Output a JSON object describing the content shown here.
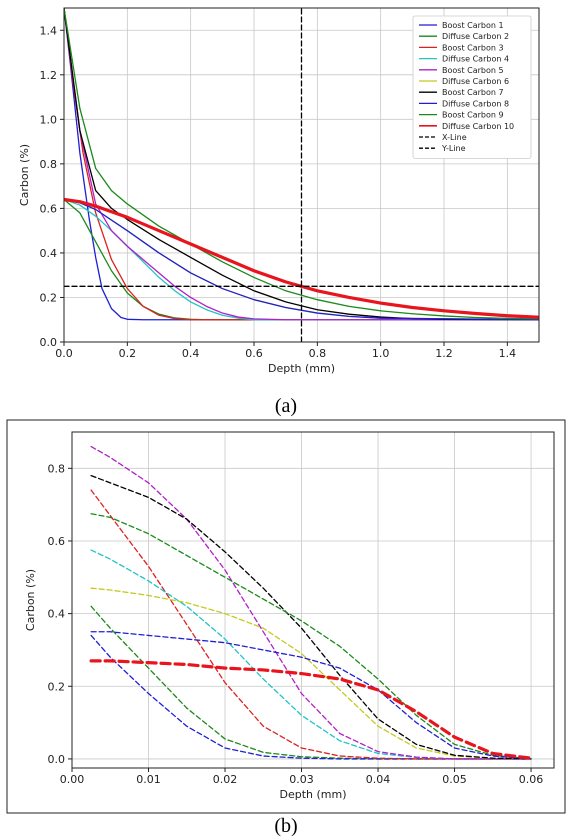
{
  "chart_data": [
    {
      "type": "line",
      "caption": "(a)",
      "xlabel": "Depth (mm)",
      "ylabel": "Carbon (%)",
      "xlim": [
        0,
        1.5
      ],
      "ylim": [
        0,
        1.5
      ],
      "xticks": [
        0.0,
        0.2,
        0.4,
        0.6,
        0.8,
        1.0,
        1.2,
        1.4
      ],
      "xtick_labels": [
        "0.0",
        "0.2",
        "0.4",
        "0.6",
        "0.8",
        "1.0",
        "1.2",
        "1.4"
      ],
      "yticks": [
        0.0,
        0.2,
        0.4,
        0.6,
        0.8,
        1.0,
        1.2,
        1.4
      ],
      "ytick_labels": [
        "0.0",
        "0.2",
        "0.4",
        "0.6",
        "0.8",
        "1.0",
        "1.2",
        "1.4"
      ],
      "grid": true,
      "legend_position": "top-right",
      "series": [
        {
          "name": "Boost Carbon 1",
          "color": "#1f1fd6",
          "style": "solid",
          "width": 1.3,
          "x": [
            0,
            0.02,
            0.05,
            0.08,
            0.1,
            0.12,
            0.15,
            0.18,
            0.2,
            0.25,
            0.3,
            1.5
          ],
          "y": [
            1.5,
            1.25,
            0.85,
            0.55,
            0.38,
            0.24,
            0.15,
            0.11,
            0.102,
            0.1,
            0.1,
            0.1
          ]
        },
        {
          "name": "Diffuse Carbon 2",
          "color": "#1a8a1a",
          "style": "solid",
          "width": 1.3,
          "x": [
            0,
            0.05,
            0.1,
            0.15,
            0.2,
            0.25,
            0.3,
            0.35,
            0.4,
            0.45,
            1.5
          ],
          "y": [
            0.64,
            0.58,
            0.45,
            0.32,
            0.22,
            0.16,
            0.125,
            0.108,
            0.102,
            0.1,
            0.1
          ]
        },
        {
          "name": "Boost Carbon 3",
          "color": "#e02020",
          "style": "solid",
          "width": 1.3,
          "x": [
            0,
            0.03,
            0.06,
            0.1,
            0.15,
            0.2,
            0.25,
            0.3,
            0.35,
            0.4,
            1.5
          ],
          "y": [
            1.5,
            1.15,
            0.85,
            0.58,
            0.37,
            0.24,
            0.16,
            0.12,
            0.105,
            0.1,
            0.1
          ]
        },
        {
          "name": "Diffuse Carbon 4",
          "color": "#20c4c4",
          "style": "solid",
          "width": 1.3,
          "x": [
            0,
            0.05,
            0.1,
            0.15,
            0.2,
            0.25,
            0.3,
            0.35,
            0.4,
            0.45,
            0.5,
            0.55,
            0.6,
            1.5
          ],
          "y": [
            0.64,
            0.615,
            0.565,
            0.5,
            0.43,
            0.36,
            0.29,
            0.23,
            0.18,
            0.145,
            0.12,
            0.107,
            0.1,
            0.1
          ]
        },
        {
          "name": "Boost Carbon 5",
          "color": "#b020c8",
          "style": "solid",
          "width": 1.3,
          "x": [
            0,
            0.05,
            0.1,
            0.15,
            0.2,
            0.25,
            0.3,
            0.35,
            0.4,
            0.45,
            0.5,
            0.55,
            0.6,
            0.7,
            1.5
          ],
          "y": [
            1.5,
            0.95,
            0.62,
            0.5,
            0.43,
            0.37,
            0.31,
            0.25,
            0.2,
            0.16,
            0.13,
            0.112,
            0.104,
            0.1,
            0.1
          ]
        },
        {
          "name": "Diffuse Carbon 6",
          "color": "#c8c820",
          "style": "solid",
          "width": 1.3,
          "x": [
            0,
            0.05,
            0.1,
            0.2,
            0.3,
            0.4,
            0.5,
            0.6,
            0.7,
            0.8,
            0.9,
            1.0,
            1.5
          ],
          "y": [
            0.64,
            0.625,
            0.595,
            0.5,
            0.4,
            0.31,
            0.24,
            0.19,
            0.155,
            0.13,
            0.115,
            0.107,
            0.1
          ]
        },
        {
          "name": "Boost Carbon 7",
          "color": "#000000",
          "style": "solid",
          "width": 1.3,
          "x": [
            0,
            0.05,
            0.1,
            0.15,
            0.2,
            0.3,
            0.4,
            0.5,
            0.6,
            0.7,
            0.8,
            0.9,
            1.0,
            1.1,
            1.2,
            1.5
          ],
          "y": [
            1.5,
            0.95,
            0.68,
            0.6,
            0.55,
            0.46,
            0.38,
            0.3,
            0.23,
            0.18,
            0.145,
            0.125,
            0.112,
            0.105,
            0.102,
            0.1
          ]
        },
        {
          "name": "Diffuse Carbon 8",
          "color": "#1f1fd6",
          "style": "solid",
          "width": 1.3,
          "x": [
            0,
            0.05,
            0.1,
            0.2,
            0.3,
            0.4,
            0.5,
            0.6,
            0.7,
            0.8,
            0.9,
            1.0,
            1.5
          ],
          "y": [
            0.64,
            0.625,
            0.595,
            0.5,
            0.4,
            0.31,
            0.24,
            0.19,
            0.155,
            0.13,
            0.115,
            0.107,
            0.1
          ]
        },
        {
          "name": "Boost Carbon 9",
          "color": "#1a8a1a",
          "style": "solid",
          "width": 1.3,
          "x": [
            0,
            0.05,
            0.1,
            0.15,
            0.2,
            0.3,
            0.4,
            0.5,
            0.6,
            0.7,
            0.8,
            0.9,
            1.0,
            1.1,
            1.2,
            1.3,
            1.4,
            1.5
          ],
          "y": [
            1.5,
            1.05,
            0.78,
            0.68,
            0.62,
            0.52,
            0.44,
            0.36,
            0.29,
            0.23,
            0.19,
            0.16,
            0.14,
            0.127,
            0.117,
            0.11,
            0.106,
            0.104
          ]
        },
        {
          "name": "Diffuse Carbon 10",
          "color": "#e8141e",
          "style": "solid",
          "width": 3.2,
          "x": [
            0,
            0.05,
            0.1,
            0.2,
            0.3,
            0.4,
            0.5,
            0.6,
            0.7,
            0.8,
            0.9,
            1.0,
            1.1,
            1.2,
            1.3,
            1.4,
            1.5
          ],
          "y": [
            0.64,
            0.63,
            0.61,
            0.56,
            0.5,
            0.44,
            0.38,
            0.32,
            0.27,
            0.23,
            0.2,
            0.175,
            0.155,
            0.14,
            0.128,
            0.118,
            0.111
          ]
        },
        {
          "name": "X-Line",
          "color": "#000000",
          "style": "dashed",
          "width": 1.3,
          "x": [
            0,
            1.5
          ],
          "y": [
            0.25,
            0.25
          ]
        },
        {
          "name": "Y-Line",
          "color": "#000000",
          "style": "dashed",
          "width": 1.3,
          "x": [
            0.75,
            0.75
          ],
          "y": [
            0,
            1.5
          ]
        }
      ]
    },
    {
      "type": "line",
      "caption": "(b)",
      "xlabel": "Depth (mm)",
      "ylabel": "Carbon (%)",
      "xlim": [
        0,
        0.063
      ],
      "ylim": [
        -0.025,
        0.9
      ],
      "xticks": [
        0.0,
        0.01,
        0.02,
        0.03,
        0.04,
        0.05,
        0.06
      ],
      "xtick_labels": [
        "0.00",
        "0.01",
        "0.02",
        "0.03",
        "0.04",
        "0.05",
        "0.06"
      ],
      "yticks": [
        0.0,
        0.2,
        0.4,
        0.6,
        0.8
      ],
      "ytick_labels": [
        "0.0",
        "0.2",
        "0.4",
        "0.6",
        "0.8"
      ],
      "grid": true,
      "series": [
        {
          "color": "#1a8a1a",
          "style": "dashed",
          "width": 1.3,
          "x": [
            0.0025,
            0.005,
            0.01,
            0.015,
            0.02,
            0.025,
            0.03,
            0.035,
            0.04,
            0.045,
            0.05,
            0.055,
            0.06
          ],
          "y": [
            0.42,
            0.36,
            0.25,
            0.14,
            0.055,
            0.018,
            0.006,
            0.002,
            0,
            0,
            0,
            0,
            0
          ]
        },
        {
          "color": "#1f1fd6",
          "style": "dashed",
          "width": 1.3,
          "x": [
            0.0025,
            0.005,
            0.01,
            0.015,
            0.02,
            0.025,
            0.03,
            0.035,
            0.04,
            0.045,
            0.05,
            0.055,
            0.06
          ],
          "y": [
            0.34,
            0.28,
            0.18,
            0.09,
            0.03,
            0.008,
            0.002,
            0,
            0,
            0,
            0,
            0,
            0
          ]
        },
        {
          "color": "#e02020",
          "style": "dashed",
          "width": 1.3,
          "x": [
            0.0025,
            0.005,
            0.01,
            0.015,
            0.02,
            0.025,
            0.03,
            0.035,
            0.04,
            0.045,
            0.05,
            0.055,
            0.06
          ],
          "y": [
            0.74,
            0.67,
            0.53,
            0.37,
            0.21,
            0.09,
            0.03,
            0.008,
            0.002,
            0,
            0,
            0,
            0
          ]
        },
        {
          "color": "#20c4c4",
          "style": "dashed",
          "width": 1.3,
          "x": [
            0.0025,
            0.005,
            0.01,
            0.015,
            0.02,
            0.025,
            0.03,
            0.035,
            0.04,
            0.045,
            0.05,
            0.055,
            0.06
          ],
          "y": [
            0.575,
            0.55,
            0.49,
            0.42,
            0.33,
            0.22,
            0.12,
            0.05,
            0.015,
            0.004,
            0,
            0,
            0
          ]
        },
        {
          "color": "#b020c8",
          "style": "dashed",
          "width": 1.3,
          "x": [
            0.0025,
            0.005,
            0.01,
            0.015,
            0.02,
            0.025,
            0.03,
            0.035,
            0.04,
            0.045,
            0.05,
            0.055,
            0.06
          ],
          "y": [
            0.86,
            0.83,
            0.76,
            0.66,
            0.52,
            0.35,
            0.18,
            0.07,
            0.02,
            0.005,
            0,
            0,
            0
          ]
        },
        {
          "color": "#c8c820",
          "style": "dashed",
          "width": 1.3,
          "x": [
            0.0025,
            0.005,
            0.01,
            0.015,
            0.02,
            0.025,
            0.03,
            0.035,
            0.04,
            0.045,
            0.05,
            0.055,
            0.06
          ],
          "y": [
            0.47,
            0.465,
            0.45,
            0.43,
            0.4,
            0.36,
            0.29,
            0.19,
            0.09,
            0.03,
            0.008,
            0.002,
            0
          ]
        },
        {
          "color": "#000000",
          "style": "dashed",
          "width": 1.3,
          "x": [
            0.0025,
            0.005,
            0.01,
            0.015,
            0.02,
            0.025,
            0.03,
            0.035,
            0.04,
            0.045,
            0.05,
            0.055,
            0.06
          ],
          "y": [
            0.78,
            0.76,
            0.72,
            0.66,
            0.57,
            0.47,
            0.36,
            0.23,
            0.11,
            0.04,
            0.01,
            0.002,
            0
          ]
        },
        {
          "color": "#1a8a1a",
          "style": "dashed",
          "width": 1.3,
          "x": [
            0.0025,
            0.005,
            0.01,
            0.015,
            0.02,
            0.025,
            0.03,
            0.035,
            0.04,
            0.045,
            0.05,
            0.055,
            0.06
          ],
          "y": [
            0.675,
            0.665,
            0.62,
            0.56,
            0.5,
            0.44,
            0.38,
            0.31,
            0.22,
            0.12,
            0.04,
            0.01,
            0
          ]
        },
        {
          "color": "#1f1fd6",
          "style": "dashed",
          "width": 1.3,
          "x": [
            0.0025,
            0.005,
            0.01,
            0.015,
            0.02,
            0.025,
            0.03,
            0.035,
            0.04,
            0.045,
            0.05,
            0.055,
            0.06
          ],
          "y": [
            0.35,
            0.35,
            0.34,
            0.33,
            0.32,
            0.3,
            0.28,
            0.25,
            0.19,
            0.1,
            0.03,
            0.008,
            0
          ]
        },
        {
          "color": "#e8141e",
          "style": "dashed",
          "width": 3.2,
          "x": [
            0.0025,
            0.005,
            0.01,
            0.015,
            0.02,
            0.025,
            0.03,
            0.035,
            0.04,
            0.045,
            0.05,
            0.055,
            0.06
          ],
          "y": [
            0.27,
            0.27,
            0.265,
            0.26,
            0.25,
            0.245,
            0.235,
            0.22,
            0.19,
            0.13,
            0.06,
            0.015,
            0.002
          ]
        }
      ]
    }
  ]
}
